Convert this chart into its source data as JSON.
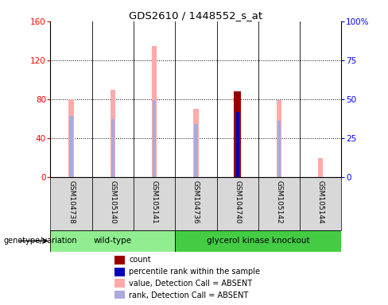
{
  "title": "GDS2610 / 1448552_s_at",
  "samples": [
    "GSM104738",
    "GSM105140",
    "GSM105141",
    "GSM104736",
    "GSM104740",
    "GSM105142",
    "GSM105144"
  ],
  "wt_group_label": "wild-type",
  "gk_group_label": "glycerol kinase knockout",
  "wt_indices": [
    0,
    1,
    2
  ],
  "gk_indices": [
    3,
    4,
    5,
    6
  ],
  "group_color_wt": "#90ee90",
  "group_color_gk": "#44cc44",
  "pink_values": [
    80,
    90,
    135,
    70,
    0,
    79,
    20
  ],
  "blue_light_values": [
    63,
    60,
    79,
    55,
    0,
    58,
    0
  ],
  "red_values": [
    0,
    0,
    0,
    0,
    88,
    0,
    0
  ],
  "blue_dark_values": [
    0,
    0,
    0,
    0,
    67,
    0,
    0
  ],
  "ylim_left": [
    0,
    160
  ],
  "ylim_right": [
    0,
    100
  ],
  "yticks_left": [
    0,
    40,
    80,
    120,
    160
  ],
  "yticks_right": [
    0,
    25,
    50,
    75,
    100
  ],
  "yticklabels_right": [
    "0",
    "25",
    "50",
    "75",
    "100%"
  ],
  "color_pink": "#ffaaaa",
  "color_light_blue": "#aaaadd",
  "color_red": "#990000",
  "color_blue": "#0000bb",
  "left_label": "genotype/variation",
  "legend_items": [
    {
      "label": "count",
      "color": "#990000"
    },
    {
      "label": "percentile rank within the sample",
      "color": "#0000bb"
    },
    {
      "label": "value, Detection Call = ABSENT",
      "color": "#ffaaaa"
    },
    {
      "label": "rank, Detection Call = ABSENT",
      "color": "#aaaadd"
    }
  ]
}
